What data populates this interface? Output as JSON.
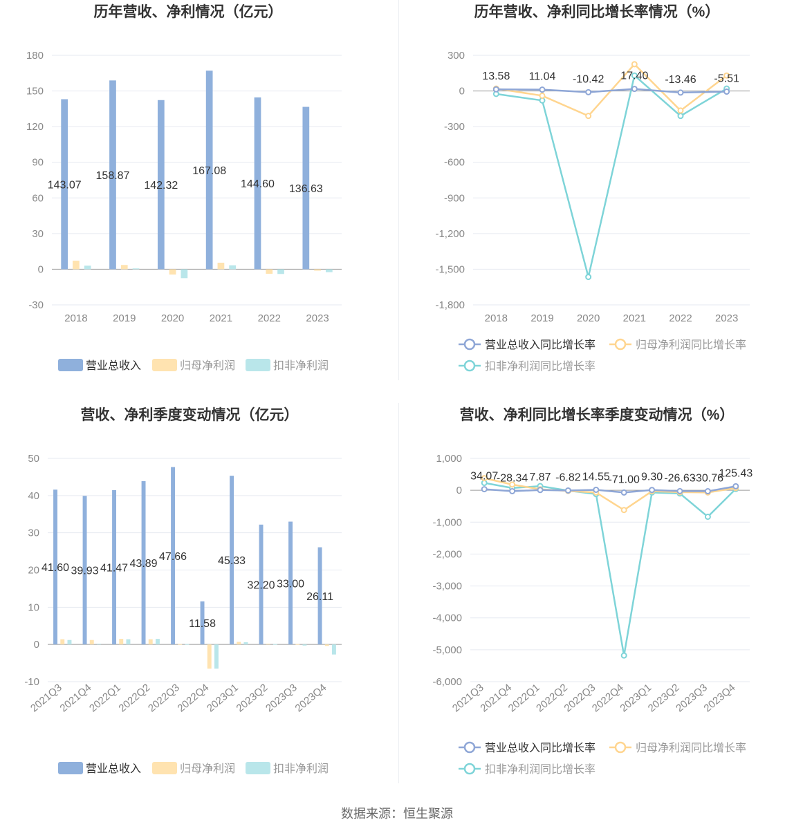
{
  "source_text": "数据来源：恒生聚源",
  "colors": {
    "revenue": "#8fb0dc",
    "net_profit": "#ffe3b0",
    "deducted_profit": "#b9e6ea",
    "revenue_line": "#8ea6d6",
    "net_profit_line": "#ffd58f",
    "deducted_profit_line": "#7ed4d8"
  },
  "chart_data": [
    {
      "type": "bar",
      "title": "历年营收、净利情况（亿元）",
      "categories": [
        "2018",
        "2019",
        "2020",
        "2021",
        "2022",
        "2023"
      ],
      "ylim": [
        -30,
        180
      ],
      "yticks": [
        -30,
        0,
        30,
        60,
        90,
        120,
        150,
        180
      ],
      "ytick_labels": [
        "-30",
        "0",
        "30",
        "60",
        "90",
        "120",
        "150",
        "180"
      ],
      "series": [
        {
          "name": "营业总收入",
          "values": [
            143.07,
            158.87,
            142.32,
            167.08,
            144.6,
            136.63
          ],
          "labels": [
            "143.07",
            "158.87",
            "142.32",
            "167.08",
            "144.60",
            "136.63"
          ]
        },
        {
          "name": "归母净利润",
          "values": [
            7.2,
            3.6,
            -4.5,
            5.5,
            -3.8,
            -1.2
          ]
        },
        {
          "name": "扣非净利润",
          "values": [
            3.0,
            0.7,
            -7.5,
            3.3,
            -4.0,
            -2.5
          ]
        }
      ]
    },
    {
      "type": "line",
      "title": "历年营收、净利同比增长率情况（%）",
      "categories": [
        "2018",
        "2019",
        "2020",
        "2021",
        "2022",
        "2023"
      ],
      "ylim": [
        -1800,
        300
      ],
      "yticks": [
        -1800,
        -1500,
        -1200,
        -900,
        -600,
        -300,
        0,
        300
      ],
      "ytick_labels": [
        "-1,800",
        "-1,500",
        "-1,200",
        "-900",
        "-600",
        "-300",
        "0",
        "300"
      ],
      "series": [
        {
          "name": "营业总收入同比增长率",
          "values": [
            13.58,
            11.04,
            -10.42,
            17.4,
            -13.46,
            -5.51
          ],
          "labels": [
            "13.58",
            "11.04",
            "-10.42",
            "17.40",
            "-13.46",
            "-5.51"
          ]
        },
        {
          "name": "归母净利润同比增长率",
          "values": [
            20,
            -40,
            -210,
            225,
            -165,
            130
          ]
        },
        {
          "name": "扣非净利润同比增长率",
          "values": [
            -25,
            -80,
            -1565,
            130,
            -210,
            20
          ]
        }
      ]
    },
    {
      "type": "bar",
      "title": "营收、净利季度变动情况（亿元）",
      "categories": [
        "2021Q3",
        "2021Q4",
        "2022Q1",
        "2022Q2",
        "2022Q3",
        "2022Q4",
        "2023Q1",
        "2023Q2",
        "2023Q3",
        "2023Q4"
      ],
      "ylim": [
        -10,
        50
      ],
      "yticks": [
        -10,
        0,
        10,
        20,
        30,
        40,
        50
      ],
      "ytick_labels": [
        "-10",
        "0",
        "10",
        "20",
        "30",
        "40",
        "50"
      ],
      "series": [
        {
          "name": "营业总收入",
          "values": [
            41.6,
            39.93,
            41.47,
            43.89,
            47.66,
            11.58,
            45.33,
            32.2,
            33.0,
            26.11
          ],
          "labels": [
            "41.60",
            "39.93",
            "41.47",
            "43.89",
            "47.66",
            "11.58",
            "45.33",
            "32.20",
            "33.00",
            "26.11"
          ]
        },
        {
          "name": "归母净利润",
          "values": [
            1.4,
            1.2,
            1.5,
            1.4,
            0.1,
            -6.5,
            0.7,
            0.2,
            0.1,
            -0.4
          ]
        },
        {
          "name": "扣非净利润",
          "values": [
            1.2,
            0.2,
            1.4,
            1.5,
            0.1,
            -6.5,
            0.6,
            0.1,
            -0.3,
            -2.7
          ]
        }
      ]
    },
    {
      "type": "line",
      "title": "营收、净利同比增长率季度变动情况（%）",
      "categories": [
        "2021Q3",
        "2021Q4",
        "2022Q1",
        "2022Q2",
        "2022Q3",
        "2022Q4",
        "2023Q1",
        "2023Q2",
        "2023Q3",
        "2023Q4"
      ],
      "ylim": [
        -6000,
        1000
      ],
      "yticks": [
        -6000,
        -5000,
        -4000,
        -3000,
        -2000,
        -1000,
        0,
        1000
      ],
      "ytick_labels": [
        "-6,000",
        "-5,000",
        "-4,000",
        "-3,000",
        "-2,000",
        "-1,000",
        "0",
        "1,000"
      ],
      "series": [
        {
          "name": "营业总收入同比增长率",
          "values": [
            34.07,
            -28.34,
            7.87,
            -6.82,
            14.55,
            -71.0,
            9.3,
            -26.63,
            -30.76,
            125.43
          ],
          "labels": [
            "34.07",
            "-28.34",
            "7.87",
            "-6.82",
            "14.55",
            "-71.00",
            "9.30",
            "-26.63",
            "-30.76",
            "125.43"
          ]
        },
        {
          "name": "归母净利润同比增长率",
          "values": [
            380,
            180,
            30,
            -20,
            -70,
            -620,
            -30,
            -60,
            -70,
            70
          ]
        },
        {
          "name": "扣非净利润同比增长率",
          "values": [
            230,
            70,
            130,
            -10,
            -120,
            -5180,
            -70,
            -100,
            -830,
            40
          ]
        }
      ]
    }
  ]
}
